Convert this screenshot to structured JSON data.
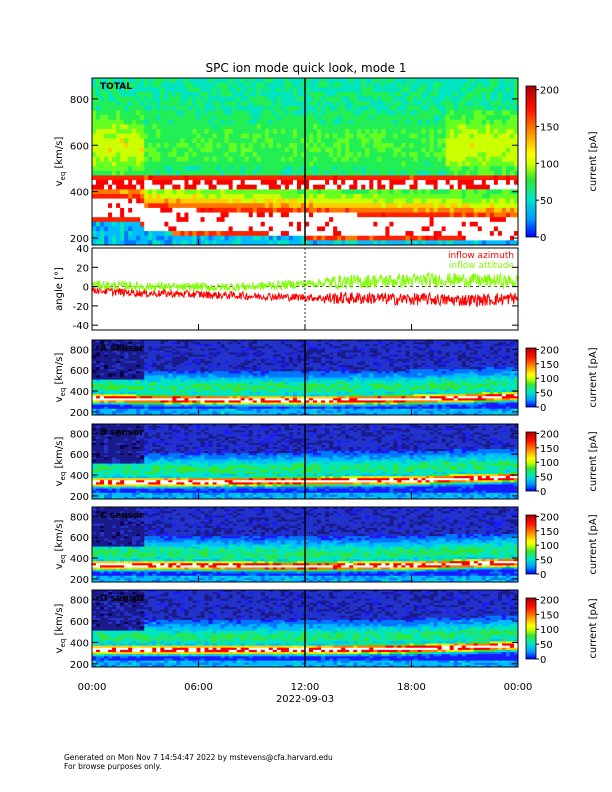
{
  "title": "SPC ion mode quick look, mode 1",
  "footer": {
    "line1": "Generated on Mon Nov  7 14:54:47 2022 by mstevens@cfa.harvard.edu",
    "line2": "For browse purposes only."
  },
  "chart_data": [
    {
      "type": "heatmap",
      "panel_label": "TOTAL",
      "ylabel": "v",
      "ylabel_sub": "eq",
      "ylabel_unit": "[km/s]",
      "ylim": [
        170,
        890
      ],
      "yticks": [
        200,
        400,
        600,
        800
      ],
      "xticks": [
        "00:00",
        "06:00",
        "12:00",
        "18:00",
        "00:00"
      ],
      "xlim_hours": [
        0,
        24
      ],
      "colorbar": {
        "label": "current [pA]",
        "range": [
          0,
          205
        ],
        "ticks": [
          0,
          50,
          100,
          150,
          200
        ]
      },
      "colormap": [
        "#1a1aff",
        "#00bbff",
        "#00e5c0",
        "#33e533",
        "#ccff00",
        "#ffff00",
        "#ff7700",
        "#ff0000",
        "#ffffff"
      ],
      "core_velocity_kms": [
        [
          0,
          330
        ],
        [
          2.7,
          330
        ],
        [
          3,
          285
        ],
        [
          6,
          275
        ],
        [
          10,
          265
        ],
        [
          12,
          260
        ],
        [
          15,
          255
        ],
        [
          18,
          250
        ],
        [
          21,
          245
        ],
        [
          24,
          240
        ]
      ],
      "saturated_band_kms": [
        410,
        470
      ]
    },
    {
      "type": "line",
      "ylabel": "angle [°]",
      "ylim": [
        -45,
        40
      ],
      "yticks": [
        -40,
        -20,
        0,
        20,
        40
      ],
      "xticks": [
        "00:00",
        "06:00",
        "12:00",
        "18:00",
        "00:00"
      ],
      "xlim_hours": [
        0,
        24
      ],
      "series": [
        {
          "name": "inflow azimuth",
          "color": "#ff0000",
          "x": [
            0,
            1,
            2,
            3,
            4,
            5,
            6,
            7,
            8,
            9,
            10,
            11,
            12,
            13,
            14,
            15,
            16,
            17,
            18,
            19,
            20,
            21,
            22,
            23,
            24
          ],
          "y": [
            -3,
            -5,
            -6,
            -7,
            -7,
            -8,
            -8,
            -9,
            -9,
            -10,
            -10,
            -11,
            -11,
            -12,
            -12,
            -12,
            -12,
            -13,
            -13,
            -13,
            -14,
            -14,
            -14,
            -13,
            -12
          ]
        },
        {
          "name": "inflow attitude",
          "color": "#7fff00",
          "x": [
            0,
            1,
            2,
            3,
            4,
            5,
            6,
            7,
            8,
            9,
            10,
            11,
            12,
            13,
            14,
            15,
            16,
            17,
            18,
            19,
            20,
            21,
            22,
            23,
            24
          ],
          "y": [
            2,
            1,
            1,
            0,
            0,
            -1,
            0,
            -1,
            0,
            0,
            1,
            2,
            3,
            4,
            5,
            5,
            6,
            6,
            6,
            7,
            7,
            7,
            6,
            6,
            5
          ]
        }
      ]
    },
    {
      "type": "heatmap",
      "panel_label": "A sensor",
      "ylabel": "v",
      "ylabel_sub": "eq",
      "ylabel_unit": "[km/s]",
      "ylim": [
        170,
        890
      ],
      "yticks": [
        200,
        400,
        600,
        800
      ],
      "xticks": [
        "00:00",
        "06:00",
        "12:00",
        "18:00",
        "00:00"
      ],
      "colorbar": {
        "label": "current [pA]",
        "range": [
          0,
          205
        ],
        "ticks": [
          0,
          50,
          100,
          150,
          200
        ]
      },
      "core_velocity_kms": [
        [
          0,
          330
        ],
        [
          3,
          320
        ],
        [
          12,
          310
        ],
        [
          18,
          320
        ],
        [
          24,
          350
        ]
      ]
    },
    {
      "type": "heatmap",
      "panel_label": "B sensor",
      "ylabel": "v",
      "ylabel_sub": "eq",
      "ylabel_unit": "[km/s]",
      "ylim": [
        170,
        890
      ],
      "yticks": [
        200,
        400,
        600,
        800
      ],
      "xticks": [
        "00:00",
        "06:00",
        "12:00",
        "18:00",
        "00:00"
      ],
      "colorbar": {
        "label": "current [pA]",
        "range": [
          0,
          205
        ],
        "ticks": [
          0,
          50,
          100,
          150,
          200
        ]
      },
      "core_velocity_kms": [
        [
          0,
          330
        ],
        [
          3,
          330
        ],
        [
          12,
          340
        ],
        [
          18,
          350
        ],
        [
          24,
          380
        ]
      ]
    },
    {
      "type": "heatmap",
      "panel_label": "C sensor",
      "ylabel": "v",
      "ylabel_sub": "eq",
      "ylabel_unit": "[km/s]",
      "ylim": [
        170,
        890
      ],
      "yticks": [
        200,
        400,
        600,
        800
      ],
      "xticks": [
        "00:00",
        "06:00",
        "12:00",
        "18:00",
        "00:00"
      ],
      "colorbar": {
        "label": "current [pA]",
        "range": [
          0,
          205
        ],
        "ticks": [
          0,
          50,
          100,
          150,
          200
        ]
      },
      "core_velocity_kms": [
        [
          0,
          330
        ],
        [
          3,
          330
        ],
        [
          12,
          320
        ],
        [
          18,
          330
        ],
        [
          24,
          360
        ]
      ]
    },
    {
      "type": "heatmap",
      "panel_label": "D sensor",
      "ylabel": "v",
      "ylabel_sub": "eq",
      "ylabel_unit": "[km/s]",
      "ylim": [
        170,
        890
      ],
      "yticks": [
        200,
        400,
        600,
        800
      ],
      "xticks": [
        "00:00",
        "06:00",
        "12:00",
        "18:00",
        "00:00"
      ],
      "xlabel": "2022-09-03",
      "colorbar": {
        "label": "current [pA]",
        "range": [
          0,
          205
        ],
        "ticks": [
          0,
          50,
          100,
          150,
          200
        ]
      },
      "core_velocity_kms": [
        [
          0,
          330
        ],
        [
          3,
          330
        ],
        [
          12,
          330
        ],
        [
          18,
          340
        ],
        [
          24,
          370
        ]
      ]
    }
  ]
}
